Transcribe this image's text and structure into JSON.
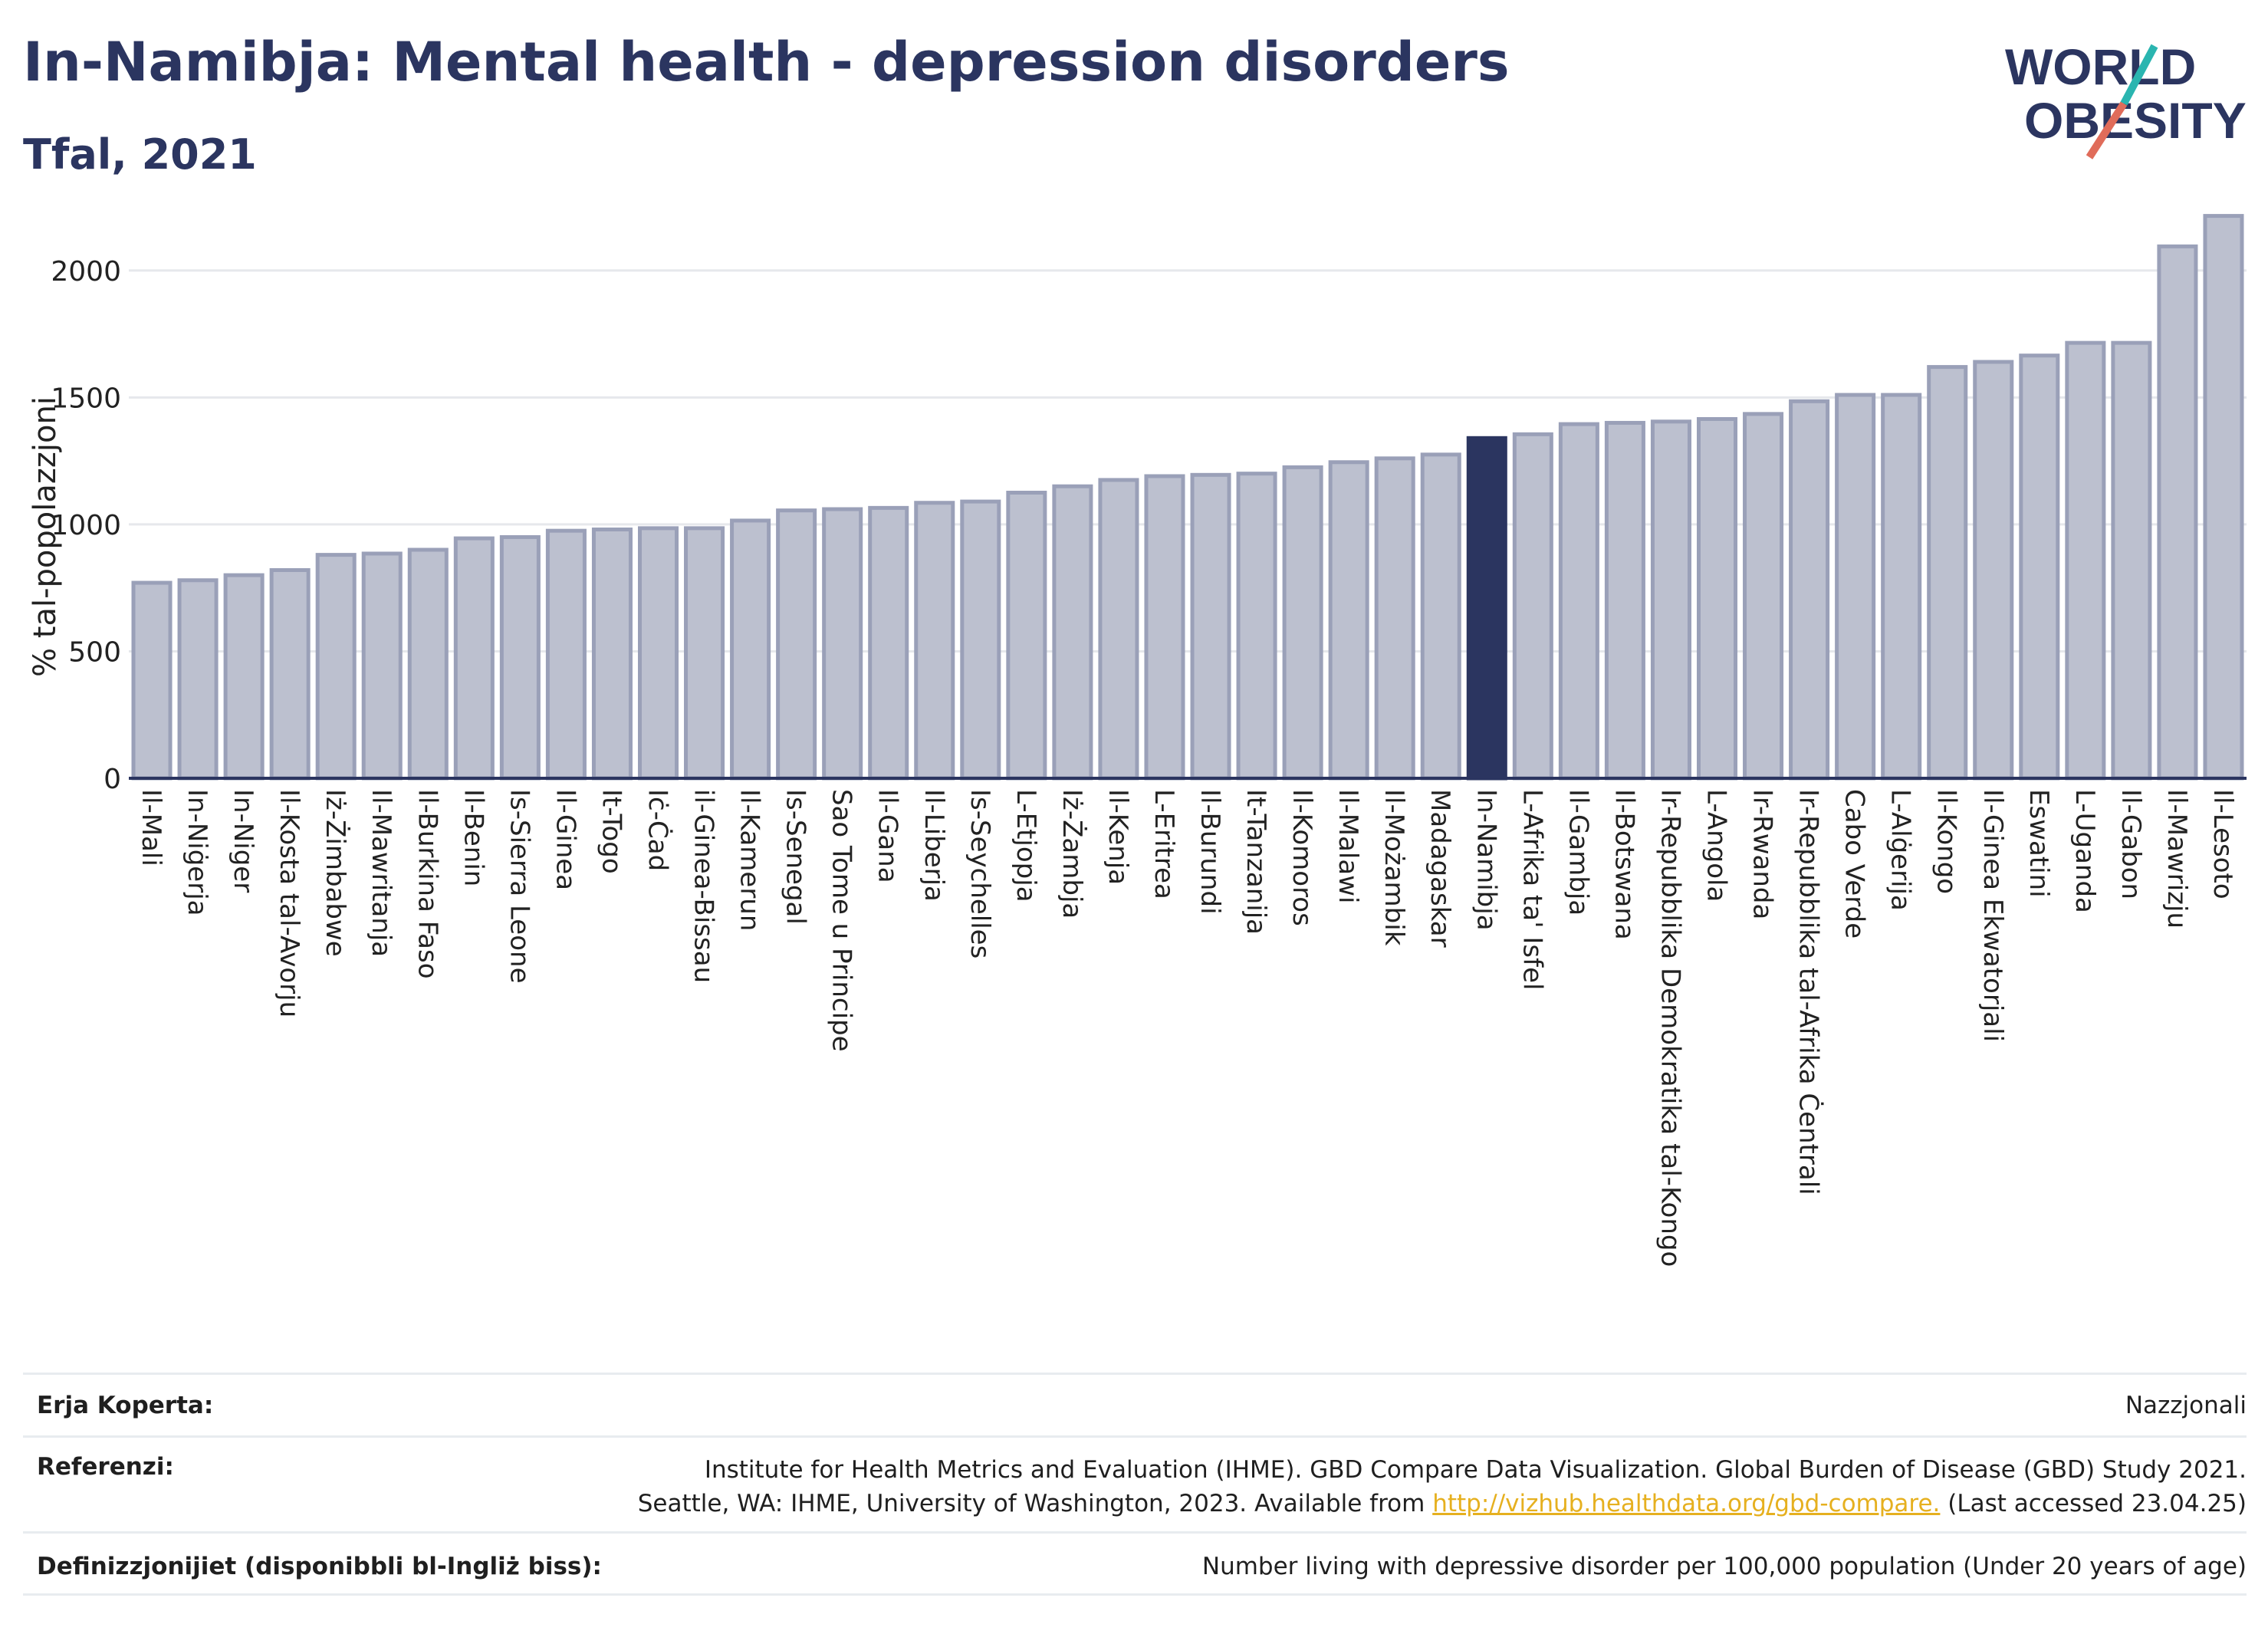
{
  "header": {
    "title": "In-Namibja: Mental health - depression disorders",
    "subtitle": "Tfal, 2021"
  },
  "logo": {
    "line1": "WORLD",
    "line2": "OBESITY"
  },
  "chart_data": {
    "type": "bar",
    "ylabel": "% tal-popolazzjoni",
    "ylim": [
      0,
      2250
    ],
    "yticks": [
      0,
      500,
      1000,
      1500,
      2000
    ],
    "grid": true,
    "highlight": "In-Namibja",
    "colors": {
      "bar": "#bcc0cf",
      "bar_edge": "#9aa0b8",
      "highlight": "#2b3560"
    },
    "categories": [
      "Il-Mali",
      "In-Niġerja",
      "In-Niger",
      "Il-Kosta tal-Avorju",
      "Iż-Żimbabwe",
      "Il-Mawritanja",
      "Il-Burkina Faso",
      "Il-Benin",
      "Is-Sierra Leone",
      "Il-Ginea",
      "It-Togo",
      "Iċ-Ċad",
      "il-Ginea-Bissau",
      "Il-Kamerun",
      "Is-Senegal",
      "Sao Tome u Principe",
      "Il-Gana",
      "Il-Liberja",
      "Is-Seychelles",
      "L-Etjopja",
      "Iż-Żambja",
      "Il-Kenja",
      "L-Eritrea",
      "Il-Burundi",
      "It-Tanzanija",
      "Il-Komoros",
      "Il-Malawi",
      "Il-Możambik",
      "Madagaskar",
      "In-Namibja",
      "L-Afrika ta' Isfel",
      "Il-Gambja",
      "Il-Botswana",
      "Ir-Repubblika Demokratika tal-Kongo",
      "L-Angola",
      "Ir-Rwanda",
      "Ir-Repubblika tal-Afrika Ċentrali",
      "Cabo Verde",
      "L-Alġerija",
      "Il-Kongo",
      "Il-Ginea Ekwatorjali",
      "Eswatini",
      "L-Uganda",
      "Il-Gabon",
      "Il-Mawrizju",
      "Il-Lesoto"
    ],
    "values": [
      770,
      780,
      800,
      820,
      880,
      885,
      900,
      945,
      950,
      975,
      980,
      985,
      985,
      1015,
      1055,
      1060,
      1065,
      1085,
      1090,
      1125,
      1150,
      1175,
      1190,
      1195,
      1200,
      1225,
      1245,
      1260,
      1275,
      1340,
      1355,
      1395,
      1400,
      1405,
      1415,
      1435,
      1485,
      1510,
      1510,
      1620,
      1640,
      1665,
      1715,
      1715,
      2095,
      2215
    ]
  },
  "footer": {
    "coverage_label": "Erja Koperta:",
    "coverage_value": "Nazzjonali",
    "references_label": "Referenzi:",
    "references_line1": "Institute for Health Metrics and Evaluation (IHME). GBD Compare Data Visualization. Global Burden of Disease (GBD) Study 2021.",
    "references_line2_pre": "Seattle, WA: IHME, University of Washington, 2023. Available from ",
    "references_link": "http://vizhub.healthdata.org/gbd-compare.",
    "references_line2_post": " (Last accessed 23.04.25)",
    "definitions_label": "Definizzjonijiet (disponibbli bl-Ingliż biss):",
    "definitions_value": "Number living with depressive disorder per 100,000 population (Under 20 years of age)"
  }
}
